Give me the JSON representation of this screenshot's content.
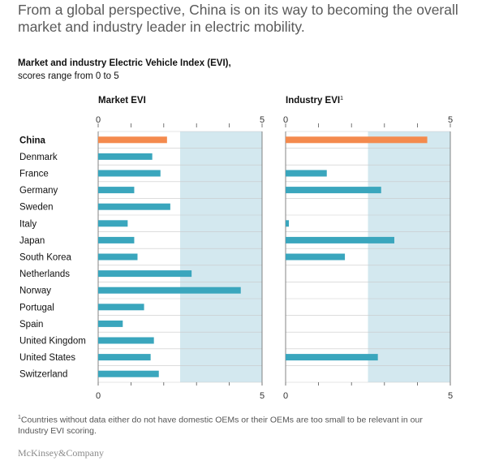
{
  "headline": "From a global perspective, China is on its way to becoming the overall market and industry leader in electric mobility.",
  "subtitle_bold": "Market and industry Electric Vehicle Index (EVI),",
  "subtitle_rest": "scores range from 0 to 5",
  "footnote_mark": "1",
  "footnote_text": "Countries without data either do not have domestic OEMs or their OEMs are too small to be relevant in our Industry EVI scoring.",
  "brand": "McKinsey&Company",
  "colors": {
    "highlight": "#f48a4d",
    "bar": "#3aa6bd",
    "band": "#d3e8ef",
    "grid": "#c9c9c9"
  },
  "chart_data": [
    {
      "type": "bar",
      "orientation": "horizontal",
      "title": "Market EVI",
      "title_sup": "",
      "xlim": [
        0,
        5
      ],
      "tick_labels": [
        "0",
        "5"
      ],
      "shaded_range": [
        2.5,
        5
      ],
      "categories": [
        "China",
        "Denmark",
        "France",
        "Germany",
        "Sweden",
        "Italy",
        "Japan",
        "South Korea",
        "Netherlands",
        "Norway",
        "Portugal",
        "Spain",
        "United Kingdom",
        "United States",
        "Switzerland"
      ],
      "values": [
        2.1,
        1.65,
        1.9,
        1.1,
        2.2,
        0.9,
        1.1,
        1.2,
        2.85,
        4.35,
        1.4,
        0.75,
        1.7,
        1.6,
        1.85
      ],
      "highlight": "China"
    },
    {
      "type": "bar",
      "orientation": "horizontal",
      "title": "Industry EVI",
      "title_sup": "1",
      "xlim": [
        0,
        5
      ],
      "tick_labels": [
        "0",
        "5"
      ],
      "shaded_range": [
        2.5,
        5
      ],
      "categories": [
        "China",
        "Denmark",
        "France",
        "Germany",
        "Sweden",
        "Italy",
        "Japan",
        "South Korea",
        "Netherlands",
        "Norway",
        "Portugal",
        "Spain",
        "United Kingdom",
        "United States",
        "Switzerland"
      ],
      "values": [
        4.3,
        null,
        1.25,
        2.9,
        null,
        0.1,
        3.3,
        1.8,
        null,
        null,
        null,
        null,
        null,
        2.8,
        null
      ],
      "highlight": "China"
    }
  ]
}
